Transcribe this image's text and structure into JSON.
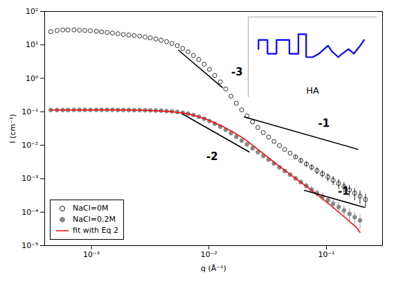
{
  "chart_data": {
    "type": "scatter",
    "xlabel": "q (Å⁻¹)",
    "ylabel": "I (cm⁻¹)",
    "log": true,
    "xlim": [
      0.0004,
      0.3
    ],
    "ylim": [
      1e-05,
      100.0
    ],
    "xticks": [
      {
        "value": 0.001,
        "label": "10⁻³"
      },
      {
        "value": 0.01,
        "label": "10⁻²"
      },
      {
        "value": 0.1,
        "label": "10⁻¹"
      }
    ],
    "yticks": [
      {
        "value": 1e-05,
        "label": "10⁻⁵"
      },
      {
        "value": 0.0001,
        "label": "10⁻⁴"
      },
      {
        "value": 0.001,
        "label": "10⁻³"
      },
      {
        "value": 0.01,
        "label": "10⁻²"
      },
      {
        "value": 0.1,
        "label": "10⁻¹"
      },
      {
        "value": 1,
        "label": "10⁰"
      },
      {
        "value": 10,
        "label": "10¹"
      },
      {
        "value": 100,
        "label": "10²"
      }
    ],
    "grid": false,
    "legend": "lower left",
    "series": [
      {
        "name": "NaCl=0M",
        "type": "scatter",
        "marker": "open circle",
        "color": "#000000",
        "x": [
          0.00045,
          0.00051,
          0.00057,
          0.00063,
          0.00071,
          0.00079,
          0.00088,
          0.00098,
          0.0011,
          0.00122,
          0.00136,
          0.00151,
          0.00168,
          0.00187,
          0.00208,
          0.00231,
          0.00257,
          0.00286,
          0.00317,
          0.00353,
          0.00392,
          0.00436,
          0.00484,
          0.00538,
          0.00598,
          0.00664,
          0.00738,
          0.0082,
          0.00911,
          0.0101,
          0.0112,
          0.0125,
          0.0139,
          0.0154,
          0.0171,
          0.019,
          0.0211,
          0.0235,
          0.0261,
          0.029,
          0.0322,
          0.0358,
          0.0398,
          0.0442,
          0.0491,
          0.0546,
          0.0606,
          0.0674,
          0.0748,
          0.0831,
          0.0923,
          0.103,
          0.114,
          0.127,
          0.141,
          0.157,
          0.174,
          0.193,
          0.215
        ],
        "values": [
          25.0,
          27.0,
          28.0,
          28.0,
          28.0,
          27.5,
          27.0,
          26.5,
          25.5,
          24.5,
          23.5,
          22.5,
          21.5,
          20.5,
          19.8,
          19.0,
          18.2,
          17.2,
          16.2,
          15.0,
          13.8,
          12.5,
          11.0,
          9.5,
          7.8,
          6.2,
          4.8,
          3.65,
          2.65,
          1.85,
          1.22,
          0.78,
          0.48,
          0.29,
          0.18,
          0.115,
          0.075,
          0.05,
          0.034,
          0.024,
          0.0175,
          0.013,
          0.0098,
          0.0075,
          0.0058,
          0.0045,
          0.0035,
          0.00275,
          0.0022,
          0.00175,
          0.0014,
          0.00112,
          0.0009,
          0.00072,
          0.00058,
          0.00046,
          0.00037,
          0.0003,
          0.00024
        ],
        "errors": [
          null,
          null,
          null,
          null,
          null,
          null,
          null,
          null,
          null,
          null,
          null,
          null,
          null,
          null,
          null,
          null,
          null,
          null,
          null,
          null,
          null,
          null,
          null,
          null,
          null,
          null,
          null,
          null,
          null,
          null,
          null,
          null,
          null,
          null,
          null,
          null,
          null,
          null,
          null,
          null,
          null,
          null,
          null,
          null,
          null,
          0.00054,
          0.000508846154,
          0.000469615385,
          0.000431538462,
          0.000387692308,
          0.000345692308,
          0.000304984615,
          0.000267923077,
          0.000232615385,
          0.000202107692,
          0.000171969231,
          0.000147715385,
          0.000127384615,
          0.000108
        ]
      },
      {
        "name": "NaCl=0.2M",
        "type": "scatter",
        "marker": "circle",
        "color": "#888888",
        "x": [
          0.00045,
          0.00051,
          0.00057,
          0.00063,
          0.00071,
          0.00079,
          0.00088,
          0.00098,
          0.0011,
          0.00122,
          0.00136,
          0.00151,
          0.00168,
          0.00187,
          0.00208,
          0.00231,
          0.00257,
          0.00286,
          0.00317,
          0.00353,
          0.00392,
          0.00436,
          0.00484,
          0.00538,
          0.00598,
          0.00664,
          0.00738,
          0.0082,
          0.00911,
          0.0101,
          0.0112,
          0.0125,
          0.0139,
          0.0154,
          0.0171,
          0.019,
          0.0211,
          0.0235,
          0.0261,
          0.029,
          0.0322,
          0.0358,
          0.0398,
          0.0442,
          0.0491,
          0.0546,
          0.0606,
          0.0674,
          0.0748,
          0.0831,
          0.0923,
          0.103,
          0.114,
          0.127,
          0.141,
          0.157,
          0.174,
          0.193
        ],
        "values": [
          0.113,
          0.113,
          0.113,
          0.113,
          0.114,
          0.114,
          0.114,
          0.114,
          0.114,
          0.114,
          0.114,
          0.114,
          0.113,
          0.113,
          0.113,
          0.112,
          0.112,
          0.111,
          0.11,
          0.109,
          0.108,
          0.106,
          0.103,
          0.099,
          0.094,
          0.088,
          0.08,
          0.071,
          0.062,
          0.053,
          0.044,
          0.036,
          0.029,
          0.023,
          0.0178,
          0.0138,
          0.0106,
          0.0081,
          0.0062,
          0.0048,
          0.0037,
          0.00285,
          0.0022,
          0.0017,
          0.00132,
          0.00102,
          0.00079,
          0.00061,
          0.000475,
          0.00037,
          0.00029,
          0.000228,
          0.00018,
          0.000142,
          0.000112,
          8.9e-05,
          7.1e-05,
          5.7e-05
        ],
        "errors": [
          null,
          null,
          null,
          null,
          null,
          null,
          null,
          null,
          null,
          null,
          null,
          null,
          null,
          null,
          null,
          null,
          null,
          null,
          null,
          null,
          null,
          null,
          null,
          null,
          null,
          null,
          null,
          null,
          null,
          null,
          null,
          null,
          null,
          null,
          null,
          null,
          null,
          null,
          null,
          null,
          null,
          null,
          null,
          null,
          0.0001584,
          0.000148292308,
          0.000134907692,
          0.000119653846,
          0.000105230769,
          9.13615385e-05,
          7.89692308e-05,
          6.78738462e-05,
          5.81538462e-05,
          4.94815385e-05,
          4.18707692e-05,
          3.55315385e-05,
          3.01476923e-05,
          2.565e-05
        ]
      },
      {
        "name": "fit with Eq 2",
        "type": "line",
        "line_style": "solid",
        "color": "#ff0000",
        "x": [
          0.00045,
          0.0006,
          0.0008,
          0.001,
          0.0014,
          0.002,
          0.003,
          0.004,
          0.005,
          0.006,
          0.007,
          0.008,
          0.0095,
          0.011,
          0.013,
          0.016,
          0.02,
          0.025,
          0.032,
          0.04,
          0.05,
          0.065,
          0.085,
          0.11,
          0.14,
          0.18,
          0.193
        ],
        "values": [
          0.113,
          0.113,
          0.113,
          0.113,
          0.114,
          0.113,
          0.11,
          0.106,
          0.099,
          0.092,
          0.083,
          0.073,
          0.06,
          0.048,
          0.037,
          0.025,
          0.0155,
          0.0085,
          0.0043,
          0.0023,
          0.00128,
          0.00065,
          0.00032,
          0.000155,
          7.5e-05,
          3.5e-05,
          2.5e-05
        ]
      },
      {
        "type": "line",
        "line_style": "solid",
        "color": "#000000",
        "x": [
          0.0055,
          0.013
        ],
        "values": [
          7.0,
          0.5300978606
        ]
      },
      {
        "type": "line",
        "line_style": "solid",
        "color": "#000000",
        "x": [
          0.02,
          0.185
        ],
        "values": [
          0.07,
          0.0075675676
        ]
      },
      {
        "type": "line",
        "line_style": "solid",
        "color": "#000000",
        "x": [
          0.006,
          0.022
        ],
        "values": [
          0.085,
          0.006322314
        ]
      },
      {
        "type": "line",
        "line_style": "solid",
        "color": "#000000",
        "x": [
          0.065,
          0.21
        ],
        "values": [
          0.00045,
          0.0001392857143
        ]
      }
    ],
    "annotations": [
      {
        "text": "-3",
        "x": 0.0155,
        "y": 1.5
      },
      {
        "text": "-1",
        "x": 0.085,
        "y": 0.045
      },
      {
        "text": "-2",
        "x": 0.0095,
        "y": 0.0045
      },
      {
        "text": "-1",
        "x": 0.125,
        "y": 0.00042
      }
    ],
    "inset": {
      "text": "HA",
      "color": "blue",
      "xlim": [
        0,
        10
      ],
      "ylim": [
        0,
        7
      ],
      "x": [
        0.8,
        0.8,
        1.5,
        1.5,
        2.2,
        2.2,
        3.2,
        3.2,
        3.9,
        3.9,
        4.5,
        4.5,
        5.0,
        5.5,
        5.9,
        6.2,
        6.5,
        7.0,
        7.3,
        7.8,
        8.2,
        8.7,
        9.0
      ],
      "y": [
        4.2,
        5.0,
        5.0,
        3.8,
        3.8,
        5.0,
        5.0,
        3.8,
        3.8,
        5.5,
        5.5,
        3.5,
        3.5,
        3.8,
        4.2,
        4.5,
        4.0,
        3.5,
        3.8,
        4.2,
        3.8,
        4.5,
        5.0
      ]
    }
  }
}
